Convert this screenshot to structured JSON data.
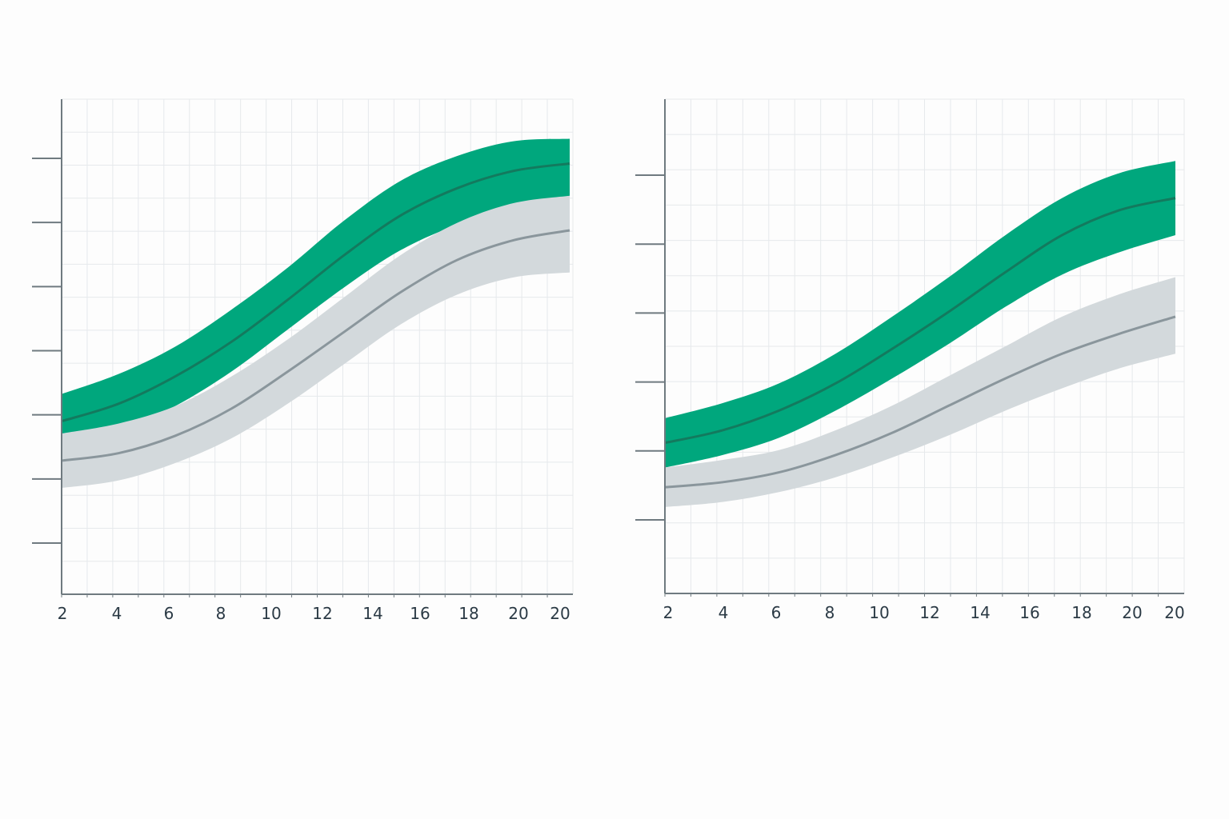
{
  "colors": {
    "green_band": "#00a77d",
    "green_line": "#137a5e",
    "gray_band": "#d3d9dc",
    "gray_line": "#8a969c",
    "axis": "#6f7a80",
    "grid": "#e6e9ec",
    "text": "#2b3a45"
  },
  "chart_data": [
    {
      "type": "area",
      "x_tick_labels": [
        "2",
        "4",
        "6",
        "8",
        "10",
        "12",
        "14",
        "16",
        "18",
        "20",
        "20"
      ],
      "y_tick_count": 7,
      "ylim": [
        0,
        100
      ],
      "grid": true,
      "series": [
        {
          "color": "green",
          "x": [
            2,
            4,
            6,
            8,
            10,
            12,
            14,
            16,
            18,
            20
          ],
          "center": [
            35,
            38.5,
            44,
            51,
            59.5,
            68.5,
            76.5,
            82,
            85.5,
            87
          ],
          "lower": [
            29.5,
            33,
            38,
            45,
            53.5,
            62,
            69.5,
            74.5,
            77,
            78
          ],
          "upper": [
            40.5,
            44.5,
            50,
            57.5,
            66,
            75.5,
            83.5,
            88.5,
            91.5,
            92
          ]
        },
        {
          "color": "gray",
          "x": [
            2,
            4,
            6,
            8,
            10,
            12,
            14,
            16,
            18,
            20
          ],
          "center": [
            27,
            28.5,
            32,
            37.5,
            45,
            53,
            61,
            67.5,
            71.5,
            73.5
          ],
          "lower": [
            21.5,
            23,
            26.5,
            31.5,
            38.5,
            46.5,
            54.5,
            60.5,
            64,
            65
          ],
          "upper": [
            32.5,
            34.5,
            38,
            44,
            51.5,
            60,
            68.5,
            75,
            79,
            80.5
          ]
        }
      ]
    },
    {
      "type": "area",
      "x_tick_labels": [
        "2",
        "4",
        "6",
        "8",
        "10",
        "12",
        "14",
        "16",
        "18",
        "20",
        "20"
      ],
      "y_tick_count": 6,
      "ylim": [
        0,
        100
      ],
      "grid": true,
      "series": [
        {
          "color": "green",
          "x": [
            2,
            4,
            6,
            8,
            10,
            12,
            14,
            16,
            18,
            20
          ],
          "center": [
            30.5,
            33,
            37,
            42.5,
            49.5,
            57,
            65,
            72.5,
            77.5,
            80
          ],
          "lower": [
            25.5,
            28,
            31.5,
            37,
            43.5,
            50.5,
            58,
            64.5,
            69,
            72.5
          ],
          "upper": [
            35.5,
            38.5,
            42.5,
            48.5,
            56,
            64,
            72.5,
            80,
            85,
            87.5
          ]
        },
        {
          "color": "gray",
          "x": [
            2,
            4,
            6,
            8,
            10,
            12,
            14,
            16,
            18,
            20
          ],
          "center": [
            21.5,
            22.5,
            24.5,
            28,
            32.5,
            38,
            43.5,
            48.5,
            52.5,
            56
          ],
          "lower": [
            17.5,
            18.5,
            20.5,
            23.5,
            27.5,
            32,
            37,
            41.5,
            45.5,
            48.5
          ],
          "upper": [
            25.5,
            27,
            29,
            33,
            38,
            44,
            50,
            56,
            60.5,
            64
          ]
        }
      ]
    }
  ]
}
